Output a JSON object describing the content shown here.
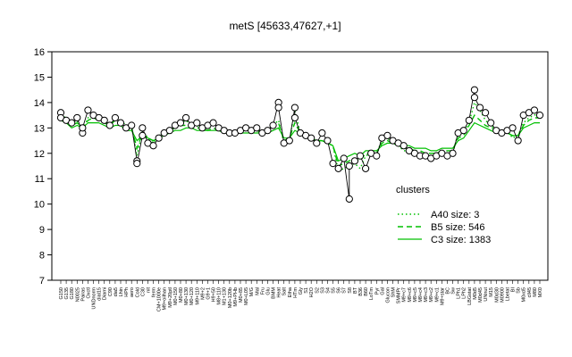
{
  "chart_data": {
    "type": "line",
    "title": "metS [45633,47627,+1]",
    "xlabel": "",
    "ylabel": "",
    "ylim": [
      7,
      16
    ],
    "y_ticks": [
      7,
      8,
      9,
      10,
      11,
      12,
      13,
      14,
      15,
      16
    ],
    "grid": false,
    "legend_position": "right",
    "legend_title": "clusters",
    "categories": [
      "G150",
      "G135",
      "G180",
      "N0025",
      "Pairas",
      "Oxctl",
      "UNDnorm",
      "dial15",
      "Diami",
      "C90",
      "dia5",
      "Lhin",
      "HPh",
      "aero",
      "Cold",
      "C30",
      "nit",
      "ferm",
      "CM+1000e",
      "M9+oilhan",
      "M9+20ptl",
      "M0+150",
      "M0+80",
      "M0+130",
      "M0+120",
      "M9+110",
      "M9+2",
      "G9+1",
      "H9+50",
      "M8+110",
      "M1+130",
      "M0+120b",
      "M9+PHb",
      "M0+85",
      "M0+L05",
      "M/G",
      "Mal",
      "Fru",
      "Glu",
      "BMM",
      "Heat",
      "Salt",
      "Etha",
      "HTm",
      "Gly",
      "S1",
      "H2O",
      "S2",
      "S3",
      "S4",
      "S5",
      "S6",
      "S7",
      "S8",
      "BT",
      "B36",
      "B60",
      "LoTm",
      "Pyr",
      "Gal",
      "Glucon",
      "ShM",
      "SMMPr",
      "M9+c7",
      "M9+c6",
      "M9+c5",
      "M9+c4",
      "M9+c3",
      "M9+c2",
      "M9+c1",
      "M9+star",
      "BC",
      "Sw",
      "LPh1",
      "LPh2",
      "LBGstat",
      "M0d5",
      "M0d45",
      "UNnut",
      "M15",
      "M0d30",
      "M0900",
      "Lbetat",
      "BI",
      "Sb",
      "M0xd5",
      "cll45",
      "M80",
      "MX0"
    ],
    "series": [
      {
        "name": "A40 size: 3",
        "color": "#00c000",
        "dash": "dotted",
        "values": [
          13.5,
          13.4,
          13.2,
          13.3,
          12.9,
          13.4,
          13.6,
          13.4,
          13.3,
          13.1,
          13.4,
          13.3,
          13.1,
          13.1,
          11.9,
          12.9,
          12.6,
          12.4,
          12.7,
          12.8,
          12.9,
          13.1,
          13.2,
          13.3,
          13.1,
          13.1,
          13.0,
          13.0,
          13.2,
          13.0,
          12.9,
          12.8,
          12.8,
          12.9,
          13.0,
          12.9,
          13.0,
          12.8,
          12.9,
          13.1,
          13.3,
          12.4,
          12.5,
          13.7,
          12.8,
          12.7,
          12.6,
          12.5,
          12.5,
          12.4,
          12.3,
          11.3,
          11.4,
          11.5,
          11.6,
          11.4,
          11.9,
          12.0,
          11.9,
          12.6,
          12.6,
          12.4,
          12.3,
          12.1,
          12.1,
          12.0,
          11.9,
          11.9,
          11.8,
          11.9,
          12.0,
          12.0,
          12.0,
          12.8,
          12.8,
          13.2,
          14.0,
          13.7,
          13.3,
          13.1,
          12.9,
          12.8,
          12.9,
          12.6,
          12.7,
          13.2,
          13.4,
          13.5,
          13.6
        ]
      },
      {
        "name": "B5 size: 546",
        "color": "#00c000",
        "dash": "dashed",
        "values": [
          13.5,
          13.3,
          13.1,
          13.2,
          13.0,
          13.3,
          13.4,
          13.3,
          13.2,
          13.1,
          13.3,
          13.2,
          13.0,
          13.0,
          12.2,
          12.8,
          12.6,
          12.5,
          12.6,
          12.8,
          12.9,
          13.0,
          13.1,
          13.1,
          13.1,
          13.0,
          13.0,
          12.9,
          13.0,
          12.9,
          12.9,
          12.8,
          12.8,
          12.9,
          12.9,
          12.9,
          12.9,
          12.8,
          12.8,
          13.0,
          13.2,
          12.5,
          12.6,
          13.2,
          12.8,
          12.7,
          12.6,
          12.5,
          12.5,
          12.4,
          12.3,
          11.5,
          11.6,
          11.7,
          11.8,
          11.7,
          12.0,
          12.0,
          12.0,
          12.4,
          12.5,
          12.4,
          12.3,
          12.2,
          12.2,
          12.1,
          12.1,
          12.0,
          12.0,
          12.0,
          12.1,
          12.1,
          12.1,
          12.6,
          12.7,
          13.1,
          13.5,
          13.3,
          13.1,
          13.0,
          12.9,
          12.8,
          12.8,
          12.7,
          12.7,
          13.1,
          13.3,
          13.4,
          13.4
        ]
      },
      {
        "name": "C3 size: 1383",
        "color": "#00c000",
        "dash": "solid",
        "values": [
          13.3,
          13.2,
          13.0,
          13.1,
          13.0,
          13.2,
          13.2,
          13.2,
          13.1,
          13.0,
          13.1,
          13.1,
          12.9,
          12.9,
          12.5,
          12.7,
          12.6,
          12.5,
          12.6,
          12.7,
          12.8,
          12.9,
          12.9,
          13.0,
          13.0,
          12.9,
          12.9,
          12.9,
          12.9,
          12.9,
          12.8,
          12.8,
          12.8,
          12.8,
          12.8,
          12.8,
          12.8,
          12.8,
          12.8,
          12.9,
          13.0,
          12.6,
          12.6,
          12.9,
          12.8,
          12.7,
          12.6,
          12.5,
          12.5,
          12.4,
          12.3,
          11.7,
          11.8,
          11.9,
          12.0,
          11.9,
          12.1,
          12.1,
          12.1,
          12.3,
          12.4,
          12.4,
          12.3,
          12.3,
          12.3,
          12.2,
          12.2,
          12.2,
          12.1,
          12.1,
          12.2,
          12.2,
          12.2,
          12.5,
          12.6,
          12.9,
          13.2,
          13.1,
          13.0,
          12.9,
          12.8,
          12.8,
          12.8,
          12.7,
          12.7,
          13.0,
          13.1,
          13.2,
          13.2
        ]
      }
    ],
    "points": [
      {
        "x": "G150",
        "y": 13.6
      },
      {
        "x": "G150",
        "y": 13.4
      },
      {
        "x": "G135",
        "y": 13.3
      },
      {
        "x": "G180",
        "y": 13.2
      },
      {
        "x": "N0025",
        "y": 13.4
      },
      {
        "x": "Pairas",
        "y": 12.8
      },
      {
        "x": "Pairas",
        "y": 13.0
      },
      {
        "x": "Oxctl",
        "y": 13.7
      },
      {
        "x": "UNDnorm",
        "y": 13.5
      },
      {
        "x": "dial15",
        "y": 13.4
      },
      {
        "x": "Diami",
        "y": 13.3
      },
      {
        "x": "C90",
        "y": 13.1
      },
      {
        "x": "dia5",
        "y": 13.4
      },
      {
        "x": "Lhin",
        "y": 13.2
      },
      {
        "x": "HPh",
        "y": 13.0
      },
      {
        "x": "aero",
        "y": 13.1
      },
      {
        "x": "Cold",
        "y": 11.7
      },
      {
        "x": "Cold",
        "y": 11.6
      },
      {
        "x": "C30",
        "y": 12.7
      },
      {
        "x": "C30",
        "y": 13.0
      },
      {
        "x": "nit",
        "y": 12.4
      },
      {
        "x": "ferm",
        "y": 12.3
      },
      {
        "x": "CM+1000e",
        "y": 12.6
      },
      {
        "x": "M9+oilhan",
        "y": 12.8
      },
      {
        "x": "M9+20ptl",
        "y": 12.9
      },
      {
        "x": "M0+150",
        "y": 13.1
      },
      {
        "x": "M0+80",
        "y": 13.2
      },
      {
        "x": "M0+130",
        "y": 13.4
      },
      {
        "x": "M0+120",
        "y": 13.1
      },
      {
        "x": "M9+110",
        "y": 13.2
      },
      {
        "x": "M9+2",
        "y": 13.0
      },
      {
        "x": "G9+1",
        "y": 13.1
      },
      {
        "x": "H9+50",
        "y": 13.2
      },
      {
        "x": "M8+110",
        "y": 13.0
      },
      {
        "x": "M1+130",
        "y": 12.9
      },
      {
        "x": "M0+120b",
        "y": 12.8
      },
      {
        "x": "M9+PHb",
        "y": 12.8
      },
      {
        "x": "M0+85",
        "y": 12.9
      },
      {
        "x": "M0+L05",
        "y": 13.0
      },
      {
        "x": "M/G",
        "y": 12.9
      },
      {
        "x": "Mal",
        "y": 13.0
      },
      {
        "x": "Fru",
        "y": 12.8
      },
      {
        "x": "Glu",
        "y": 12.9
      },
      {
        "x": "BMM",
        "y": 13.1
      },
      {
        "x": "Heat",
        "y": 14.0
      },
      {
        "x": "Heat",
        "y": 13.8
      },
      {
        "x": "Salt",
        "y": 12.4
      },
      {
        "x": "Etha",
        "y": 12.5
      },
      {
        "x": "HTm",
        "y": 13.8
      },
      {
        "x": "HTm",
        "y": 13.4
      },
      {
        "x": "Gly",
        "y": 12.8
      },
      {
        "x": "S1",
        "y": 12.7
      },
      {
        "x": "H2O",
        "y": 12.6
      },
      {
        "x": "S2",
        "y": 12.4
      },
      {
        "x": "S3",
        "y": 12.8
      },
      {
        "x": "S4",
        "y": 12.5
      },
      {
        "x": "S5",
        "y": 11.6
      },
      {
        "x": "S6",
        "y": 11.4
      },
      {
        "x": "S7",
        "y": 11.8
      },
      {
        "x": "S8",
        "y": 10.2
      },
      {
        "x": "S8",
        "y": 11.5
      },
      {
        "x": "BT",
        "y": 11.7
      },
      {
        "x": "B36",
        "y": 11.9
      },
      {
        "x": "B60",
        "y": 11.4
      },
      {
        "x": "LoTm",
        "y": 12.0
      },
      {
        "x": "Pyr",
        "y": 11.9
      },
      {
        "x": "Gal",
        "y": 12.6
      },
      {
        "x": "Glucon",
        "y": 12.7
      },
      {
        "x": "ShM",
        "y": 12.5
      },
      {
        "x": "SMMPr",
        "y": 12.4
      },
      {
        "x": "M9+c7",
        "y": 12.3
      },
      {
        "x": "M9+c6",
        "y": 12.1
      },
      {
        "x": "M9+c5",
        "y": 12.0
      },
      {
        "x": "M9+c4",
        "y": 11.9
      },
      {
        "x": "M9+c3",
        "y": 11.9
      },
      {
        "x": "M9+c2",
        "y": 11.8
      },
      {
        "x": "M9+c1",
        "y": 11.9
      },
      {
        "x": "M9+star",
        "y": 12.0
      },
      {
        "x": "BC",
        "y": 11.9
      },
      {
        "x": "Sw",
        "y": 12.0
      },
      {
        "x": "LPh1",
        "y": 12.8
      },
      {
        "x": "LPh2",
        "y": 12.9
      },
      {
        "x": "LBGstat",
        "y": 13.3
      },
      {
        "x": "M0d5",
        "y": 14.5
      },
      {
        "x": "M0d5",
        "y": 14.2
      },
      {
        "x": "M0d45",
        "y": 13.8
      },
      {
        "x": "UNnut",
        "y": 13.6
      },
      {
        "x": "M15",
        "y": 13.2
      },
      {
        "x": "M0d30",
        "y": 12.9
      },
      {
        "x": "M0900",
        "y": 12.8
      },
      {
        "x": "Lbetat",
        "y": 12.9
      },
      {
        "x": "BI",
        "y": 13.0
      },
      {
        "x": "Sb",
        "y": 12.5
      },
      {
        "x": "M0xd5",
        "y": 13.5
      },
      {
        "x": "cll45",
        "y": 13.6
      },
      {
        "x": "M80",
        "y": 13.7
      },
      {
        "x": "MX0",
        "y": 13.5
      }
    ]
  }
}
